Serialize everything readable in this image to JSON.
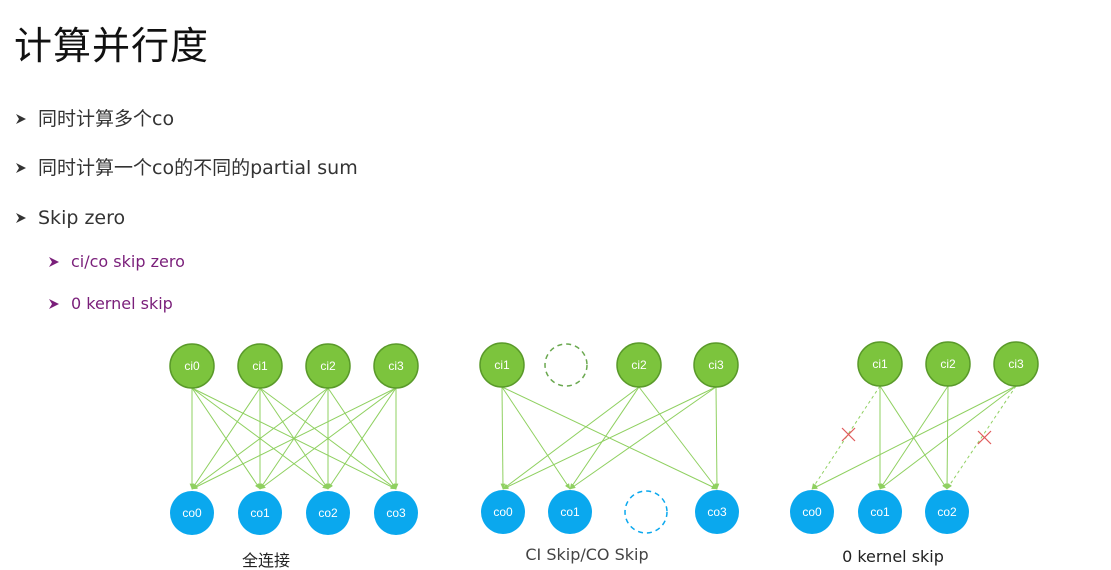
{
  "slide": {
    "title": "计算并行度",
    "bullets": [
      "同时计算多个co",
      "同时计算一个co的不同的partial sum",
      "Skip zero"
    ],
    "sub_bullets": [
      "ci/co skip zero",
      "0 kernel skip"
    ]
  },
  "colors": {
    "ci_node": "#7cc43d",
    "ci_stroke": "#5a9a2a",
    "co_node": "#0aa8ee",
    "edge": "#8fd060",
    "skip_x": "#e05a5a",
    "sub_bullet_text": "#7a1f7a"
  },
  "diagrams": [
    {
      "caption": "全连接",
      "ci_nodes": [
        "ci0",
        "ci1",
        "ci2",
        "ci3"
      ],
      "co_nodes": [
        "co0",
        "co1",
        "co2",
        "co3"
      ]
    },
    {
      "caption": "CI Skip/CO Skip",
      "ci_nodes": [
        "ci1",
        "",
        "ci2",
        "ci3"
      ],
      "co_nodes": [
        "co0",
        "co1",
        "",
        "co3"
      ]
    },
    {
      "caption": "0 kernel skip",
      "ci_nodes": [
        "ci1",
        "ci2",
        "ci3"
      ],
      "co_nodes": [
        "co0",
        "co1",
        "co2"
      ]
    }
  ]
}
